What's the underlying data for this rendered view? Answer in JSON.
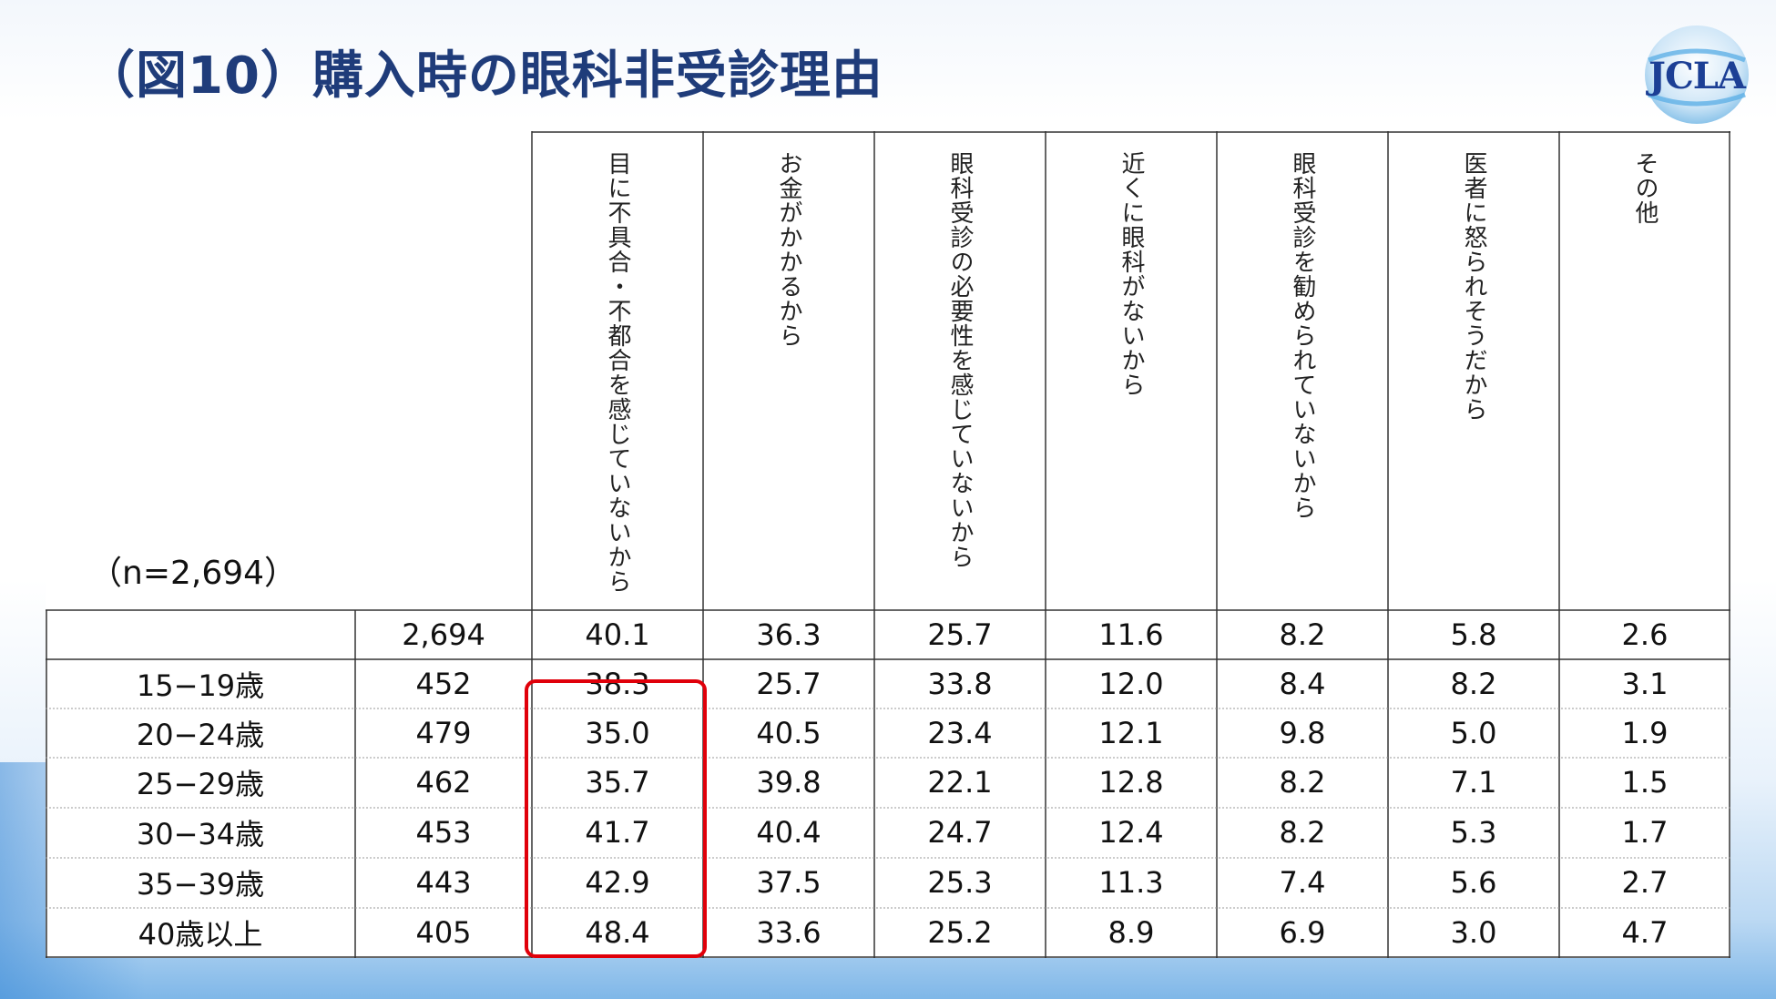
{
  "title": "（図10）購入時の眼科非受診理由",
  "logo_text": "JCLA",
  "sample_label": "（n=2,694）",
  "headers": [
    "目に不具合・不都合を感じていないから",
    "お金がかかるから",
    "眼科受診の必要性を感じていないから",
    "近くに眼科がないから",
    "眼科受診を勧められていないから",
    "医者に怒られそうだから",
    "その他"
  ],
  "rows": [
    {
      "label": "",
      "n": "2,694",
      "values": [
        "40.1",
        "36.3",
        "25.7",
        "11.6",
        "8.2",
        "5.8",
        "2.6"
      ]
    },
    {
      "label": "15−19歳",
      "n": "452",
      "values": [
        "38.3",
        "25.7",
        "33.8",
        "12.0",
        "8.4",
        "8.2",
        "3.1"
      ]
    },
    {
      "label": "20−24歳",
      "n": "479",
      "values": [
        "35.0",
        "40.5",
        "23.4",
        "12.1",
        "9.8",
        "5.0",
        "1.9"
      ]
    },
    {
      "label": "25−29歳",
      "n": "462",
      "values": [
        "35.7",
        "39.8",
        "22.1",
        "12.8",
        "8.2",
        "7.1",
        "1.5"
      ]
    },
    {
      "label": "30−34歳",
      "n": "453",
      "values": [
        "41.7",
        "40.4",
        "24.7",
        "12.4",
        "8.2",
        "5.3",
        "1.7"
      ]
    },
    {
      "label": "35−39歳",
      "n": "443",
      "values": [
        "42.9",
        "37.5",
        "25.3",
        "11.3",
        "7.4",
        "5.6",
        "2.7"
      ]
    },
    {
      "label": "40歳以上",
      "n": "405",
      "values": [
        "48.4",
        "33.6",
        "25.2",
        "8.9",
        "6.9",
        "3.0",
        "4.7"
      ]
    }
  ],
  "colors": {
    "title": "#1f3c7a",
    "highlight": "#e0000a",
    "logo": "#1c3f95"
  }
}
